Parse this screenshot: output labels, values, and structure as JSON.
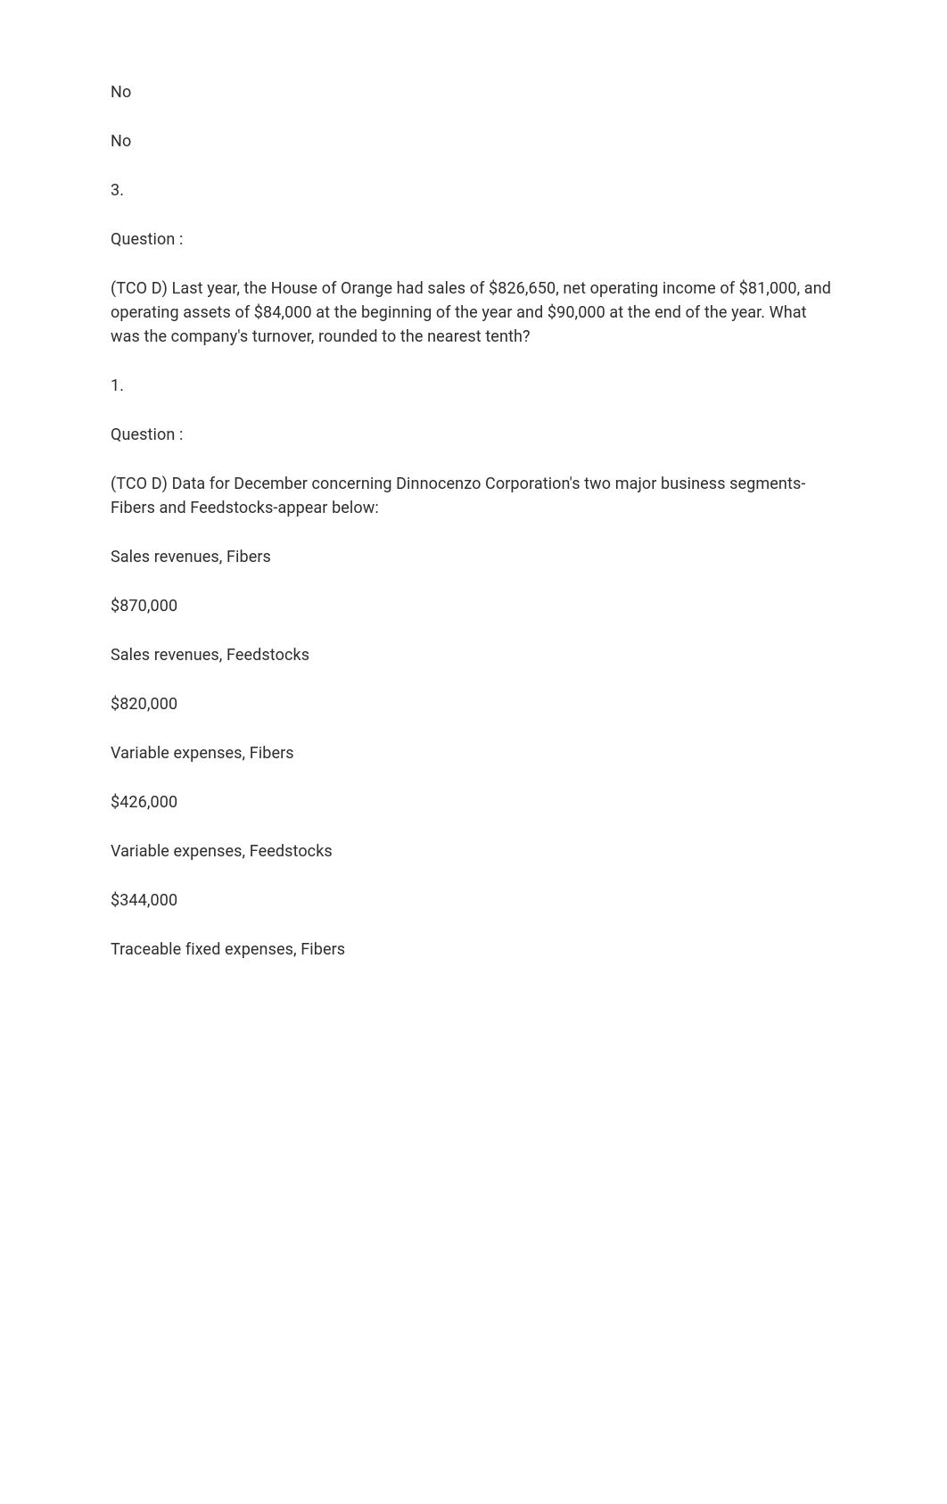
{
  "colors": {
    "background": "#ffffff",
    "text": "#2d2d2d"
  },
  "typography": {
    "font_size": 18,
    "line_height": 1.5,
    "paragraph_spacing": 28
  },
  "paragraphs": [
    "No",
    "No",
    "3.",
    "Question :",
    "(TCO D) Last year, the House of Orange had sales of $826,650, net operating income of $81,000, and operating assets of $84,000 at the beginning of the year and $90,000 at the end of the year. What was the company's turnover, rounded to the nearest tenth?",
    "1.",
    "Question :",
    "(TCO D) Data for December concerning Dinnocenzo Corporation's two major business segments-Fibers and Feedstocks-appear below:",
    "Sales revenues, Fibers",
    "$870,000",
    "Sales revenues, Feedstocks",
    "$820,000",
    "Variable expenses, Fibers",
    "$426,000",
    "Variable expenses, Feedstocks",
    "$344,000",
    "Traceable fixed expenses, Fibers"
  ]
}
